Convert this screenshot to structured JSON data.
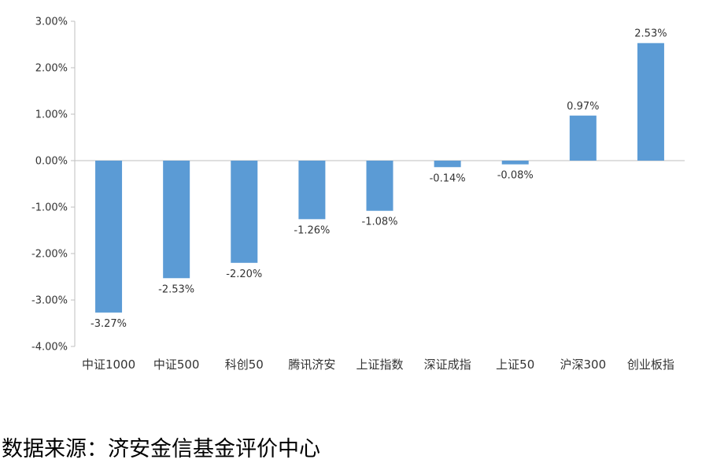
{
  "chart_data": {
    "type": "bar",
    "categories": [
      "中证1000",
      "中证500",
      "科创50",
      "腾讯济安",
      "上证指数",
      "深证成指",
      "上证50",
      "沪深300",
      "创业板指"
    ],
    "values": [
      -3.27,
      -2.53,
      -2.2,
      -1.26,
      -1.08,
      -0.14,
      -0.08,
      0.97,
      2.53
    ],
    "data_labels": [
      "-3.27%",
      "-2.53%",
      "-2.20%",
      "-1.26%",
      "-1.08%",
      "-0.14%",
      "-0.08%",
      "0.97%",
      "2.53%"
    ],
    "ylim": [
      -4,
      3
    ],
    "yticks": [
      3,
      2,
      1,
      0,
      -1,
      -2,
      -3,
      -4
    ],
    "ytick_labels": [
      "3.00%",
      "2.00%",
      "1.00%",
      "0.00%",
      "-1.00%",
      "-2.00%",
      "-3.00%",
      "-4.00%"
    ],
    "title": "",
    "xlabel": "",
    "ylabel": "",
    "bar_color": "#5b9bd5",
    "axis_color": "#bfbfbf",
    "grid": false,
    "legend": "none"
  },
  "source": {
    "text": "数据来源：济安金信基金评价中心"
  }
}
